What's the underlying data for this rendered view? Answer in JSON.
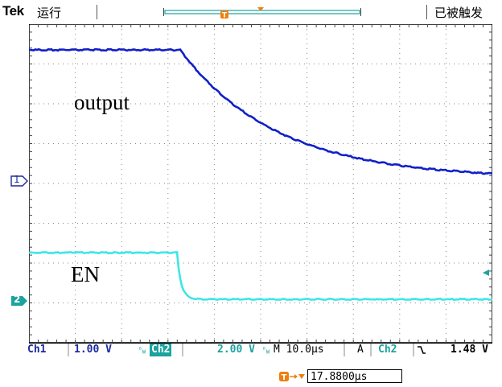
{
  "header": {
    "brand": "Tek",
    "run_state": "运行",
    "trigger_state": "已被触发"
  },
  "waveforms": {
    "ch1_label": "output",
    "ch2_label": "EN",
    "ch1_color": "#1020c8",
    "ch2_color": "#3ee6e6"
  },
  "channel_markers": {
    "ch1": "1",
    "ch2": "2"
  },
  "status_bar": {
    "ch1_name": "Ch1",
    "ch1_scale": "1.00 V",
    "ch2_bw_mark": "B W",
    "ch2_name": "Ch2",
    "ch2_scale": "2.00 V",
    "ch2_bw_mark2": "B W",
    "timebase": "M 10.0µs",
    "trigger_mode": "A",
    "trigger_source": "Ch2",
    "trigger_slope": "\\",
    "trigger_level": "1.48 V"
  },
  "trigger_delay": {
    "icon": "trigger-to-position-icon",
    "value": "17.8800µs"
  }
}
